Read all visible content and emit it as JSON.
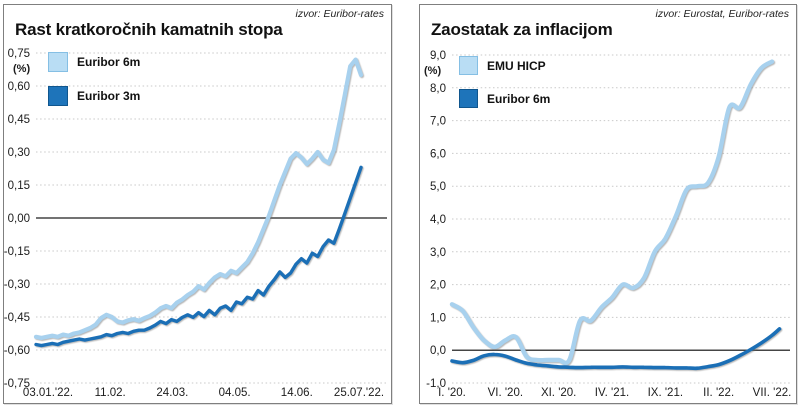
{
  "chart_data": [
    {
      "id": "left",
      "type": "line",
      "source": "izvor: Euribor-rates",
      "title": "Rast kratkoročnih kamatnih stopa",
      "unit_label": "(%)",
      "grid": true,
      "legend_position": "top-left-inside",
      "y_axis": {
        "range": [
          -0.75,
          0.75
        ],
        "ticks": [
          {
            "label": "0,75",
            "value": 0.75
          },
          {
            "label": "0,60",
            "value": 0.6
          },
          {
            "label": "0,45",
            "value": 0.45
          },
          {
            "label": "0,30",
            "value": 0.3
          },
          {
            "label": "0,15",
            "value": 0.15
          },
          {
            "label": "0,00",
            "value": 0.0
          },
          {
            "label": "-0,15",
            "value": -0.15
          },
          {
            "label": "-0,30",
            "value": -0.3
          },
          {
            "label": "-0,45",
            "value": -0.45
          },
          {
            "label": "-0,60",
            "value": -0.6
          },
          {
            "label": "-0,75",
            "value": -0.75
          }
        ]
      },
      "x_axis": {
        "max": 60,
        "ticks": [
          "03.01.'22.",
          "11.02.",
          "24.03.",
          "04.05.",
          "14.06.",
          "25.07.'22."
        ]
      },
      "legend": [
        {
          "label": "Euribor 6m",
          "color": "#b9ddf4",
          "border": "#85bfe4"
        },
        {
          "label": "Euribor 3m",
          "color": "#1e74ba",
          "border": "#10568e"
        }
      ],
      "series": [
        {
          "name": "Euribor 6m",
          "color": "#a8d1ee",
          "width": 4.2,
          "smooth": false,
          "values": [
            -0.54,
            -0.545,
            -0.54,
            -0.535,
            -0.54,
            -0.53,
            -0.535,
            -0.525,
            -0.52,
            -0.51,
            -0.5,
            -0.485,
            -0.455,
            -0.44,
            -0.45,
            -0.47,
            -0.475,
            -0.465,
            -0.46,
            -0.467,
            -0.455,
            -0.445,
            -0.43,
            -0.41,
            -0.4,
            -0.41,
            -0.385,
            -0.37,
            -0.35,
            -0.335,
            -0.31,
            -0.325,
            -0.295,
            -0.27,
            -0.255,
            -0.265,
            -0.24,
            -0.25,
            -0.225,
            -0.2,
            -0.16,
            -0.11,
            -0.05,
            0.01,
            0.08,
            0.15,
            0.21,
            0.27,
            0.295,
            0.275,
            0.245,
            0.27,
            0.3,
            0.265,
            0.25,
            0.31,
            0.43,
            0.56,
            0.69,
            0.72,
            0.65
          ]
        },
        {
          "name": "Euribor 3m",
          "color": "#1b6fb6",
          "width": 3.4,
          "smooth": false,
          "values": [
            -0.575,
            -0.58,
            -0.575,
            -0.57,
            -0.575,
            -0.565,
            -0.56,
            -0.555,
            -0.55,
            -0.555,
            -0.55,
            -0.545,
            -0.54,
            -0.53,
            -0.535,
            -0.525,
            -0.52,
            -0.525,
            -0.515,
            -0.51,
            -0.51,
            -0.5,
            -0.487,
            -0.47,
            -0.48,
            -0.462,
            -0.47,
            -0.452,
            -0.44,
            -0.452,
            -0.43,
            -0.448,
            -0.42,
            -0.44,
            -0.41,
            -0.4,
            -0.42,
            -0.382,
            -0.39,
            -0.36,
            -0.368,
            -0.33,
            -0.35,
            -0.31,
            -0.28,
            -0.245,
            -0.27,
            -0.25,
            -0.21,
            -0.185,
            -0.205,
            -0.16,
            -0.175,
            -0.13,
            -0.1,
            -0.115,
            -0.05,
            0.02,
            0.09,
            0.16,
            0.23
          ]
        }
      ]
    },
    {
      "id": "right",
      "type": "line",
      "source": "izvor: Eurostat, Euribor-rates",
      "title": "Zaostatak za inflacijom",
      "unit_label": "(%)",
      "grid": true,
      "legend_position": "top-left-inside",
      "y_axis": {
        "range": [
          -1.0,
          9.0
        ],
        "ticks": [
          {
            "label": "9,0",
            "value": 9.0
          },
          {
            "label": "8,0",
            "value": 8.0
          },
          {
            "label": "7,0",
            "value": 7.0
          },
          {
            "label": "6,0",
            "value": 6.0
          },
          {
            "label": "5,0",
            "value": 5.0
          },
          {
            "label": "4,0",
            "value": 4.0
          },
          {
            "label": "3,0",
            "value": 3.0
          },
          {
            "label": "2,0",
            "value": 2.0
          },
          {
            "label": "1,0",
            "value": 1.0
          },
          {
            "label": "0,0",
            "value": 0.0
          },
          {
            "label": "-1,0",
            "value": -1.0
          }
        ]
      },
      "x_axis": {
        "max": 30,
        "ticks": [
          "I. '20.",
          "VI. '20.",
          "XI. '20.",
          "IV. '21.",
          "IX. '21.",
          "II. '22.",
          "VII. '22."
        ]
      },
      "legend": [
        {
          "label": "EMU HICP",
          "color": "#b9ddf4",
          "border": "#85bfe4"
        },
        {
          "label": "Euribor 6m",
          "color": "#1e74ba",
          "border": "#10568e"
        }
      ],
      "series": [
        {
          "name": "EMU HICP",
          "color": "#a8d1ee",
          "width": 4.4,
          "smooth": true,
          "values": [
            1.4,
            1.2,
            0.7,
            0.3,
            0.1,
            0.3,
            0.4,
            -0.2,
            -0.3,
            -0.3,
            -0.3,
            -0.3,
            0.9,
            0.9,
            1.3,
            1.6,
            2.0,
            1.9,
            2.2,
            3.0,
            3.4,
            4.1,
            4.9,
            5.0,
            5.1,
            5.9,
            7.4,
            7.4,
            8.1,
            8.6,
            8.8
          ]
        },
        {
          "name": "Euribor 6m",
          "color": "#1b6fb6",
          "width": 3.6,
          "smooth": true,
          "x": [
            0,
            1,
            2,
            3,
            4,
            5,
            6,
            7,
            8,
            9,
            10,
            11,
            12,
            13,
            14,
            15,
            16,
            17,
            18,
            19,
            20,
            21,
            22,
            23,
            24,
            25,
            26,
            27,
            28,
            29,
            30,
            30.7
          ],
          "values": [
            -0.33,
            -0.38,
            -0.31,
            -0.17,
            -0.13,
            -0.18,
            -0.3,
            -0.4,
            -0.45,
            -0.48,
            -0.51,
            -0.52,
            -0.53,
            -0.52,
            -0.52,
            -0.52,
            -0.51,
            -0.52,
            -0.52,
            -0.53,
            -0.53,
            -0.54,
            -0.54,
            -0.55,
            -0.5,
            -0.44,
            -0.32,
            -0.16,
            0.02,
            0.22,
            0.45,
            0.65
          ]
        }
      ]
    }
  ]
}
